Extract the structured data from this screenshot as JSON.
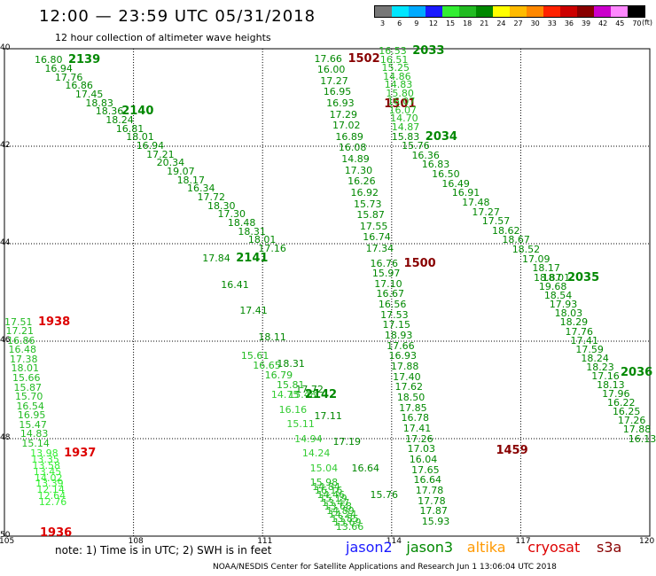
{
  "header": {
    "title": "12:00 — 23:59 UTC 05/31/2018",
    "subtitle": "12 hour collection of altimeter wave heights"
  },
  "legend": {
    "unit": "(ft)",
    "ticks": [
      "3",
      "6",
      "9",
      "12",
      "15",
      "18",
      "21",
      "24",
      "27",
      "30",
      "33",
      "36",
      "39",
      "42",
      "45",
      "70"
    ],
    "colors": [
      "#777777",
      "#00e6ff",
      "#00aaff",
      "#1a1aff",
      "#33ee33",
      "#22bb22",
      "#008800",
      "#ffff00",
      "#ffbb00",
      "#ff8800",
      "#ff2200",
      "#cc0000",
      "#880000",
      "#cc00cc",
      "#ff88ff",
      "#000000"
    ]
  },
  "map": {
    "lon_labels": [
      "105",
      "108",
      "111",
      "114",
      "117",
      "120"
    ],
    "lat_labels": [
      "40",
      "42",
      "44",
      "46",
      "48",
      "50"
    ],
    "grid_color": "#000000"
  },
  "chart_data": {
    "type": "scatter",
    "x_axis": {
      "range": [
        105,
        120
      ],
      "ticks": [
        105,
        108,
        111,
        114,
        117,
        120
      ]
    },
    "y_axis": {
      "range": [
        50,
        40
      ],
      "ticks": [
        40,
        42,
        44,
        46,
        48,
        50
      ]
    },
    "grid": true,
    "tracks": [
      {
        "label": "2139",
        "label_color": "#008800",
        "color": "#008800",
        "start": [
          105.7,
          40.13
        ],
        "end": [
          110.9,
          44.0
        ],
        "values": [
          "16.80",
          "16.94",
          "17.76",
          "16.86",
          "17.45",
          "18.83",
          "18.36",
          "18.24",
          "16.81",
          "18.01",
          "16.94",
          "17.21",
          "20.34",
          "19.07",
          "18.17",
          "16.34",
          "17.72",
          "18.30",
          "17.30",
          "18.48",
          "18.31",
          "18.01",
          "17.16"
        ]
      },
      {
        "label": "2140",
        "label_color": "#008800",
        "color": "#008800",
        "start": [
          106.9,
          41.15
        ],
        "end": [
          110.9,
          44.0
        ],
        "values": []
      },
      {
        "label": "2141",
        "label_color": "#008800",
        "color": "#008800",
        "start": [
          109.6,
          44.2
        ],
        "end": [
          113.5,
          49.05
        ],
        "values": [
          "17.84",
          "16.41",
          "17.41",
          "18.11",
          "18.31",
          "17.72",
          "17.11",
          "17.19",
          "16.64",
          "15.76"
        ]
      },
      {
        "label": "",
        "label_color": "#008800",
        "color": "#22bb22",
        "start": [
          110.5,
          46.2
        ],
        "end": [
          111.6,
          47.0
        ],
        "values": [
          "15.61",
          "16.65",
          "16.79",
          "15.81",
          "15.48"
        ]
      },
      {
        "label": "2142",
        "label_color": "#008800",
        "color": "#33cc33",
        "start": [
          111.2,
          47.0
        ],
        "end": [
          112.1,
          48.5
        ],
        "values": [
          "14.75",
          "16.16",
          "15.11",
          "14.94",
          "14.24",
          "15.04"
        ]
      },
      {
        "label": "",
        "label_color": "#008800",
        "color": "#22bb22",
        "start": [
          112.1,
          48.8
        ],
        "end": [
          112.7,
          49.7
        ],
        "values": [
          "15.98",
          "14.84",
          "16.16",
          "14.46",
          "15.19",
          "13.47",
          "13.68",
          "14.89",
          "14.24",
          "13.85",
          "13.69",
          "13.66"
        ]
      },
      {
        "label": "1938",
        "label_color": "#dd0000",
        "color": "#22bb22",
        "start": [
          105.0,
          45.5
        ],
        "end": [
          105.4,
          48.0
        ],
        "values": [
          "17.51",
          "17.21",
          "16.86",
          "16.48",
          "17.38",
          "18.01",
          "15.66",
          "15.87",
          "15.70",
          "16.54",
          "16.95",
          "15.47",
          "14.83",
          "15.14"
        ]
      },
      {
        "label": "1937",
        "label_color": "#dd0000",
        "color": "#33ee33",
        "start": [
          105.6,
          48.2
        ],
        "end": [
          105.8,
          49.2
        ],
        "values": [
          "13.98",
          "13.35",
          "13.58",
          "13.45",
          "14.02",
          "13.39",
          "12.14",
          "12.64",
          "12.76"
        ]
      },
      {
        "label": "1936",
        "label_color": "#dd0000",
        "color": "#33ee33",
        "start": [
          105.0,
          49.8
        ],
        "end": [
          105.0,
          49.8
        ],
        "values": []
      },
      {
        "label": "1502",
        "label_color": "#880000",
        "color": "#008800",
        "start": [
          112.2,
          40.1
        ],
        "end": [
          113.4,
          44.0
        ],
        "values": [
          "17.66",
          "16.00",
          "17.27",
          "16.95",
          "16.93",
          "17.29",
          "17.02",
          "16.89",
          "16.08",
          "14.89",
          "17.30",
          "16.26",
          "16.92",
          "15.73",
          "15.87",
          "17.55",
          "16.74",
          "17.34"
        ]
      },
      {
        "label": "1501",
        "label_color": "#880000",
        "color": "#008800",
        "start": [
          113.0,
          41.0
        ],
        "end": [
          113.0,
          41.0
        ],
        "values": []
      },
      {
        "label": "1500",
        "label_color": "#880000",
        "color": "#008800",
        "start": [
          113.5,
          44.3
        ],
        "end": [
          114.7,
          49.6
        ],
        "values": [
          "16.76",
          "15.97",
          "17.10",
          "16.67",
          "16.56",
          "17.53",
          "17.15",
          "18.93",
          "17.66",
          "16.93",
          "17.88",
          "17.40",
          "17.62",
          "18.50",
          "17.85",
          "16.78",
          "17.41",
          "17.26",
          "17.03",
          "16.04",
          "17.65",
          "16.64",
          "17.78",
          "17.78",
          "17.87",
          "15.93"
        ]
      },
      {
        "label": "1459",
        "label_color": "#880000",
        "color": "#008800",
        "start": [
          115.6,
          48.1
        ],
        "end": [
          115.6,
          48.1
        ],
        "values": []
      },
      {
        "label": "2033",
        "label_color": "#008800",
        "color": "#22bb22",
        "start": [
          113.7,
          39.95
        ],
        "end": [
          114.0,
          41.5
        ],
        "values": [
          "16.53",
          "16.51",
          "15.25",
          "14.86",
          "14.83",
          "15.80",
          "16.07",
          "16.07",
          "14.70",
          "14.87"
        ]
      },
      {
        "label": "2034",
        "label_color": "#008800",
        "color": "#008800",
        "start": [
          114.0,
          41.7
        ],
        "end": [
          117.5,
          44.6
        ],
        "values": [
          "15.83",
          "15.76",
          "16.36",
          "16.83",
          "16.50",
          "16.49",
          "16.91",
          "17.48",
          "17.27",
          "17.57",
          "18.62",
          "18.67",
          "18.52",
          "17.09",
          "18.17",
          "18.01"
        ]
      },
      {
        "label": "2035",
        "label_color": "#008800",
        "color": "#008800",
        "start": [
          117.3,
          44.6
        ],
        "end": [
          119.5,
          47.9
        ],
        "values": [
          "18.87",
          "19.68",
          "18.54",
          "17.93",
          "18.03",
          "18.29",
          "17.76",
          "17.41",
          "17.59",
          "18.24",
          "18.23",
          "17.16",
          "18.13",
          "17.96",
          "16.22",
          "16.25",
          "17.26",
          "17.88",
          "16.13"
        ]
      },
      {
        "label": "2036",
        "label_color": "#008800",
        "color": "#008800",
        "start": [
          118.6,
          46.5
        ],
        "end": [
          118.6,
          46.5
        ],
        "values": []
      }
    ]
  },
  "footer": {
    "note": "note: 1) Time is in UTC; 2) SWH is in feet",
    "satellites": [
      {
        "name": "jason2",
        "color": "#1a1aff"
      },
      {
        "name": "jason3",
        "color": "#008800"
      },
      {
        "name": "altika",
        "color": "#ff9900"
      },
      {
        "name": "cryosat",
        "color": "#dd0000"
      },
      {
        "name": "s3a",
        "color": "#880000"
      }
    ],
    "credit": "NOAA/NESDIS Center for Satellite Applications and Research    Jun  1 13:06:04 UTC 2018"
  }
}
